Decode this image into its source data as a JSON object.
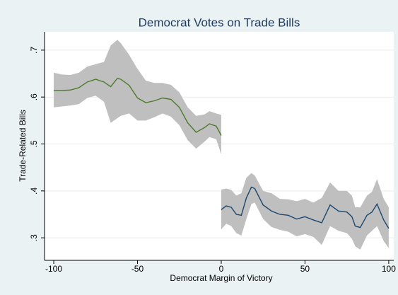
{
  "chart_data": {
    "type": "line-band",
    "title": "Democrat Votes on Trade Bills",
    "xlabel": "Democrat Margin of Victory",
    "ylabel": "Trade-Related Bills",
    "xlim": [
      -105.5,
      103
    ],
    "xticks": [
      -100,
      -50,
      0,
      50,
      100
    ],
    "ylim": [
      0.252,
      0.739
    ],
    "yticks": [
      {
        "value": 0.3,
        "label": ".3"
      },
      {
        "value": 0.4,
        "label": ".4"
      },
      {
        "value": 0.5,
        "label": ".5"
      },
      {
        "value": 0.6,
        "label": ".6"
      },
      {
        "value": 0.7,
        "label": ".7"
      }
    ],
    "grid": true,
    "band_color": "#bfbfbf",
    "series": [
      {
        "color": "#4b7a2a",
        "x": [
          -100,
          -95,
          -90,
          -85,
          -80,
          -75,
          -70,
          -66,
          -62,
          -60,
          -55,
          -50,
          -45,
          -40,
          -35,
          -30,
          -25,
          -20,
          -15,
          -10,
          -7,
          -3,
          0
        ],
        "values": [
          0.614,
          0.614,
          0.615,
          0.62,
          0.632,
          0.638,
          0.632,
          0.622,
          0.64,
          0.638,
          0.625,
          0.598,
          0.588,
          0.592,
          0.598,
          0.595,
          0.578,
          0.545,
          0.525,
          0.535,
          0.543,
          0.538,
          0.518
        ],
        "upper": [
          0.652,
          0.648,
          0.647,
          0.652,
          0.665,
          0.67,
          0.675,
          0.71,
          0.722,
          0.715,
          0.69,
          0.66,
          0.635,
          0.63,
          0.63,
          0.626,
          0.61,
          0.578,
          0.56,
          0.563,
          0.57,
          0.565,
          0.562
        ],
        "lower": [
          0.578,
          0.58,
          0.582,
          0.585,
          0.598,
          0.603,
          0.59,
          0.545,
          0.555,
          0.56,
          0.565,
          0.55,
          0.55,
          0.557,
          0.565,
          0.558,
          0.54,
          0.508,
          0.49,
          0.505,
          0.515,
          0.51,
          0.478
        ]
      },
      {
        "color": "#1a476f",
        "x": [
          0,
          3,
          6,
          9,
          12,
          15,
          18,
          20,
          25,
          30,
          35,
          40,
          45,
          50,
          55,
          60,
          65,
          70,
          75,
          78,
          80,
          83,
          87,
          90,
          93,
          97,
          100
        ],
        "values": [
          0.36,
          0.368,
          0.365,
          0.35,
          0.348,
          0.385,
          0.408,
          0.405,
          0.37,
          0.357,
          0.35,
          0.348,
          0.34,
          0.345,
          0.338,
          0.332,
          0.37,
          0.357,
          0.355,
          0.345,
          0.325,
          0.322,
          0.348,
          0.355,
          0.372,
          0.338,
          0.32
        ],
        "upper": [
          0.403,
          0.405,
          0.402,
          0.39,
          0.395,
          0.428,
          0.438,
          0.433,
          0.4,
          0.395,
          0.383,
          0.382,
          0.378,
          0.383,
          0.375,
          0.385,
          0.418,
          0.4,
          0.4,
          0.39,
          0.365,
          0.365,
          0.39,
          0.398,
          0.425,
          0.383,
          0.365
        ],
        "lower": [
          0.318,
          0.33,
          0.325,
          0.31,
          0.305,
          0.34,
          0.372,
          0.375,
          0.34,
          0.323,
          0.317,
          0.313,
          0.303,
          0.308,
          0.302,
          0.285,
          0.325,
          0.315,
          0.31,
          0.298,
          0.282,
          0.275,
          0.305,
          0.315,
          0.325,
          0.293,
          0.278
        ]
      }
    ]
  }
}
